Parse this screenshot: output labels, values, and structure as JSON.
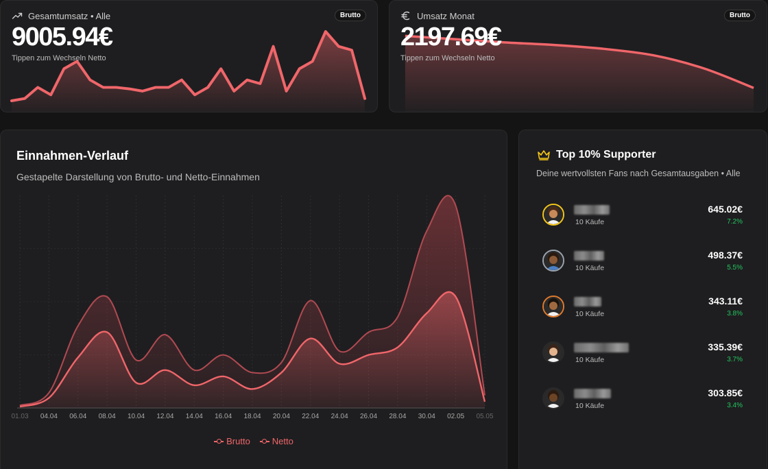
{
  "total_card": {
    "title": "Gesamtumsatz • Alle",
    "value": "9005.94€",
    "hint": "Tippen zum Wechseln Netto",
    "badge": "Brutto"
  },
  "month_card": {
    "title": "Umsatz Monat",
    "value": "2197.69€",
    "hint": "Tippen zum Wechseln Netto",
    "badge": "Brutto"
  },
  "income_card": {
    "title": "Einnahmen-Verlauf",
    "subtitle": "Gestapelte Darstellung von Brutto- und Netto-Einnahmen"
  },
  "supporters": {
    "title": "Top 10% Supporter",
    "subtitle": "Deine wertvollsten Fans nach Gesamtausgaben • Alle",
    "items": [
      {
        "purchases": "10 Käufe",
        "amount": "645.02€",
        "pct": "7.2%",
        "ring": "#f5c518"
      },
      {
        "purchases": "10 Käufe",
        "amount": "498.37€",
        "pct": "5.5%",
        "ring": "#9aa3ad"
      },
      {
        "purchases": "10 Käufe",
        "amount": "343.11€",
        "pct": "3.8%",
        "ring": "#e07a2c"
      },
      {
        "purchases": "10 Käufe",
        "amount": "335.39€",
        "pct": "3.7%",
        "ring": "#2a2a2a"
      },
      {
        "purchases": "10 Käufe",
        "amount": "303.85€",
        "pct": "3.4%",
        "ring": "#2a2a2a"
      }
    ]
  },
  "colors": {
    "accent": "#f0666a",
    "positive": "#22c55e",
    "badge_gold": "#f5c518"
  },
  "chart_data": [
    {
      "type": "area",
      "x": [
        1,
        2,
        3,
        4,
        5,
        6,
        7,
        8,
        9,
        10,
        11,
        12,
        13,
        14,
        15,
        16,
        17,
        18,
        19,
        20,
        21,
        22,
        23,
        24,
        25,
        26,
        27,
        28
      ],
      "values": [
        0.02,
        0.05,
        0.2,
        0.1,
        0.45,
        0.55,
        0.3,
        0.2,
        0.2,
        0.18,
        0.15,
        0.2,
        0.2,
        0.3,
        0.1,
        0.2,
        0.45,
        0.15,
        0.3,
        0.25,
        0.75,
        0.15,
        0.45,
        0.55,
        0.95,
        0.75,
        0.7,
        0.05
      ]
    },
    {
      "type": "area",
      "x": [
        1,
        2,
        3,
        4,
        5,
        6,
        7,
        8
      ],
      "values": [
        1.0,
        0.95,
        0.9,
        0.86,
        0.8,
        0.7,
        0.5,
        0.2
      ]
    },
    {
      "type": "area",
      "title": "Einnahmen-Verlauf",
      "categories": [
        "01.03",
        "04.04",
        "06.04",
        "08.04",
        "10.04",
        "12.04",
        "14.04",
        "16.04",
        "18.04",
        "20.04",
        "22.04",
        "24.04",
        "26.04",
        "28.04",
        "30.04",
        "02.05",
        "05.05"
      ],
      "series": [
        {
          "name": "Brutto",
          "values": [
            2,
            12,
            65,
            88,
            38,
            58,
            30,
            42,
            28,
            36,
            85,
            45,
            60,
            72,
            140,
            160,
            10
          ]
        },
        {
          "name": "Netto",
          "values": [
            1,
            8,
            40,
            60,
            20,
            30,
            18,
            25,
            15,
            28,
            55,
            35,
            42,
            48,
            75,
            88,
            5
          ]
        }
      ],
      "ylim": [
        0,
        165
      ],
      "legend": "bottom-center",
      "grid": true
    }
  ]
}
